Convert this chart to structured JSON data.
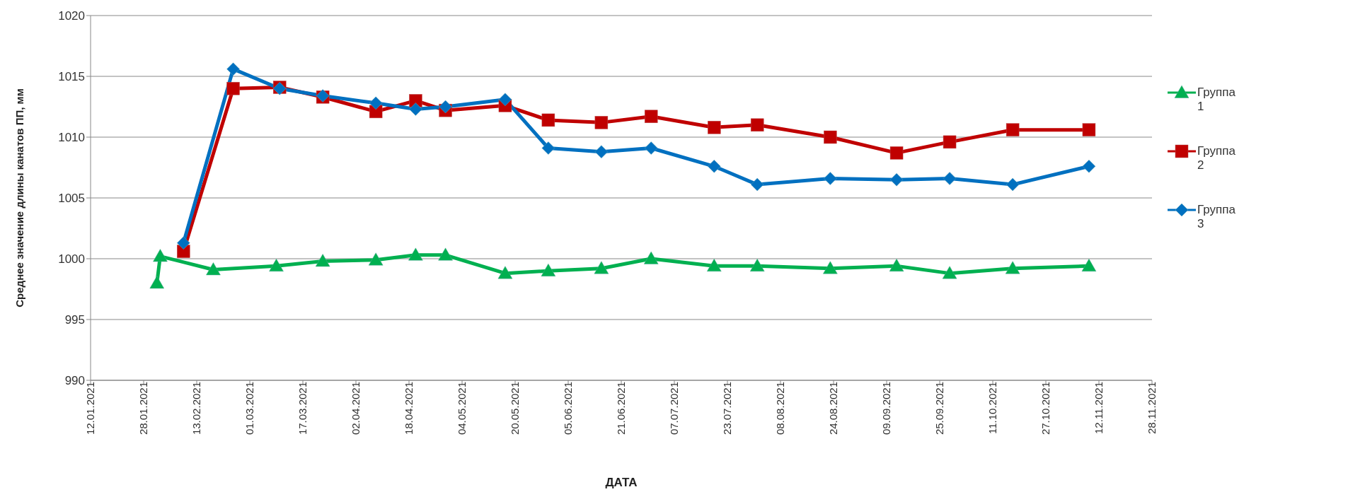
{
  "chart_data": {
    "type": "line",
    "xlabel": "ДАТА",
    "ylabel": "Среднее значение длины канатов ПП, мм",
    "xlim": [
      "2021-01-12",
      "2021-11-28"
    ],
    "xticks": [
      {
        "value": "2021-01-12",
        "label": "12.01.2021"
      },
      {
        "value": "2021-01-28",
        "label": "28.01.2021"
      },
      {
        "value": "2021-02-13",
        "label": "13.02.2021"
      },
      {
        "value": "2021-03-01",
        "label": "01.03.2021"
      },
      {
        "value": "2021-03-17",
        "label": "17.03.2021"
      },
      {
        "value": "2021-04-02",
        "label": "02.04.2021"
      },
      {
        "value": "2021-04-18",
        "label": "18.04.2021"
      },
      {
        "value": "2021-05-04",
        "label": "04.05.2021"
      },
      {
        "value": "2021-05-20",
        "label": "20.05.2021"
      },
      {
        "value": "2021-06-05",
        "label": "05.06.2021"
      },
      {
        "value": "2021-06-21",
        "label": "21.06.2021"
      },
      {
        "value": "2021-07-07",
        "label": "07.07.2021"
      },
      {
        "value": "2021-07-23",
        "label": "23.07.2021"
      },
      {
        "value": "2021-08-08",
        "label": "08.08.2021"
      },
      {
        "value": "2021-08-24",
        "label": "24.08.2021"
      },
      {
        "value": "2021-09-09",
        "label": "09.09.2021"
      },
      {
        "value": "2021-09-25",
        "label": "25.09.2021"
      },
      {
        "value": "2021-10-11",
        "label": "11.10.2021"
      },
      {
        "value": "2021-10-27",
        "label": "27.10.2021"
      },
      {
        "value": "2021-11-12",
        "label": "12.11.2021"
      },
      {
        "value": "2021-11-28",
        "label": "28.11.2021"
      }
    ],
    "ylim": [
      990,
      1020
    ],
    "yticks": [
      990,
      995,
      1000,
      1005,
      1010,
      1015,
      1020
    ],
    "grid": "y",
    "legend": "right",
    "series": [
      {
        "name": "Группа 1",
        "color": "#00b050",
        "marker": "triangle",
        "x": [
          "2021-02-01",
          "2021-02-02",
          "2021-02-18",
          "2021-03-09",
          "2021-03-23",
          "2021-04-08",
          "2021-04-20",
          "2021-04-29",
          "2021-05-17",
          "2021-05-30",
          "2021-06-15",
          "2021-06-30",
          "2021-07-19",
          "2021-08-01",
          "2021-08-23",
          "2021-09-12",
          "2021-09-28",
          "2021-10-17",
          "2021-11-09"
        ],
        "values": [
          998.0,
          1000.2,
          999.1,
          999.4,
          999.8,
          999.9,
          1000.3,
          1000.3,
          998.8,
          999.0,
          999.2,
          1000.0,
          999.4,
          999.4,
          999.2,
          999.4,
          998.8,
          999.2,
          999.4
        ]
      },
      {
        "name": "Группа 2",
        "color": "#c00000",
        "marker": "square",
        "x": [
          "2021-02-09",
          "2021-02-24",
          "2021-03-10",
          "2021-03-23",
          "2021-04-08",
          "2021-04-20",
          "2021-04-29",
          "2021-05-17",
          "2021-05-30",
          "2021-06-15",
          "2021-06-30",
          "2021-07-19",
          "2021-08-01",
          "2021-08-23",
          "2021-09-12",
          "2021-09-28",
          "2021-10-17",
          "2021-11-09"
        ],
        "values": [
          1000.6,
          1014.0,
          1014.1,
          1013.3,
          1012.1,
          1013.0,
          1012.2,
          1012.6,
          1011.4,
          1011.2,
          1011.7,
          1010.8,
          1011.0,
          1010.0,
          1008.7,
          1009.6,
          1010.6,
          1010.6
        ]
      },
      {
        "name": "Группа 3",
        "color": "#0070c0",
        "marker": "diamond",
        "x": [
          "2021-02-09",
          "2021-02-24",
          "2021-03-10",
          "2021-03-23",
          "2021-04-08",
          "2021-04-20",
          "2021-04-29",
          "2021-05-17",
          "2021-05-30",
          "2021-06-15",
          "2021-06-30",
          "2021-07-19",
          "2021-08-01",
          "2021-08-23",
          "2021-09-12",
          "2021-09-28",
          "2021-10-17",
          "2021-11-09"
        ],
        "values": [
          1001.3,
          1015.6,
          1014.0,
          1013.4,
          1012.8,
          1012.3,
          1012.5,
          1013.1,
          1009.1,
          1008.8,
          1009.1,
          1007.6,
          1006.1,
          1006.6,
          1006.5,
          1006.6,
          1006.1,
          1007.6
        ]
      }
    ]
  }
}
